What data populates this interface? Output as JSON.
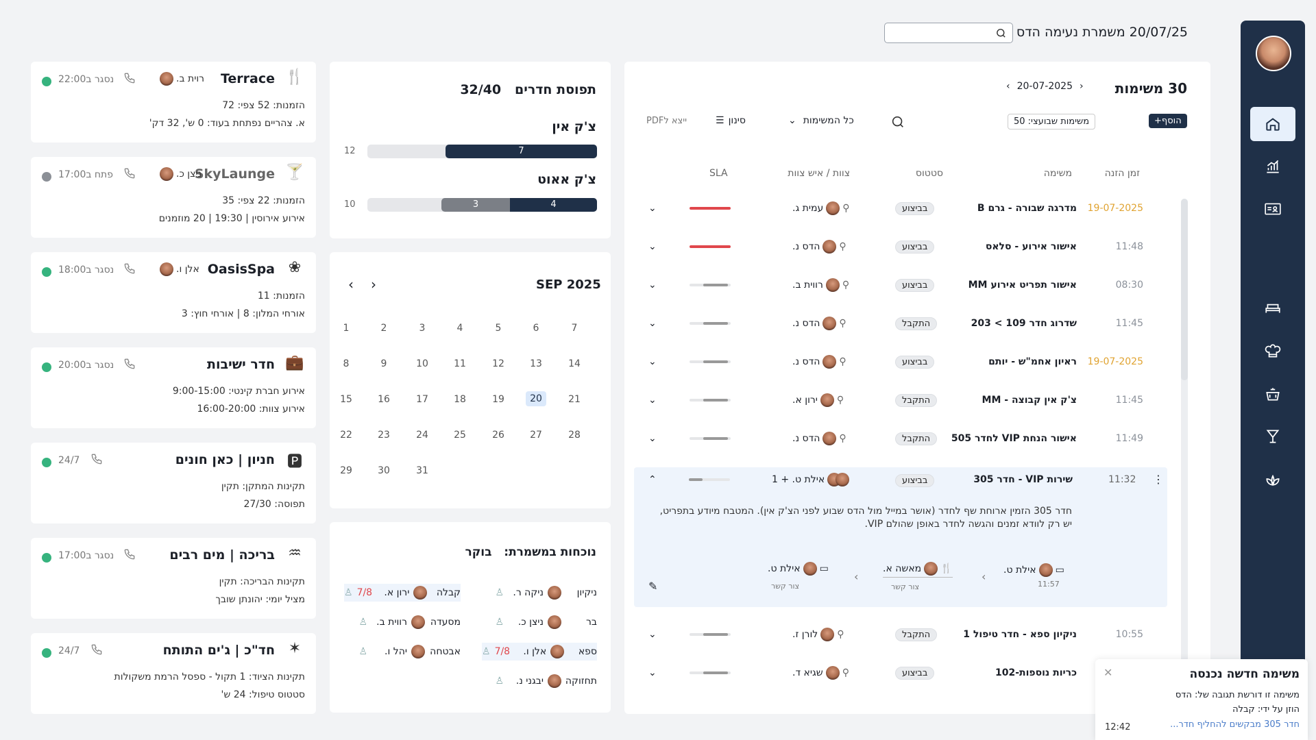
{
  "header": {
    "title": "20/07/25 משמרת נעימה הדס",
    "search_placeholder": ""
  },
  "sidebar": {
    "items": [
      "home-icon",
      "analytics-icon",
      "id-card-icon",
      "bed-icon",
      "chef-icon",
      "room-service-icon",
      "cocktail-icon",
      "spa-icon"
    ]
  },
  "tasks": {
    "title": "30 משימות",
    "date": "20-07-2025",
    "add_label": "+הוסף",
    "weekly_label": "משימות שבועצי: 50",
    "filter_all": "כל המשימות",
    "filter_label": "סינון",
    "export_label": "ייצא לPDF",
    "columns": {
      "time": "זמן הזנה",
      "task": "משימה",
      "status": "סטטוס",
      "team": "צוות / איש צוות",
      "sla": "SLA"
    },
    "rows": [
      {
        "time": "19-07-2025",
        "task": "מדרגה שבורה - גרם B",
        "status": "בביצוע",
        "person": "עמית ג.",
        "sla": "red",
        "icon": "wrench-icon"
      },
      {
        "time": "11:48",
        "task": "אישור אירוע - סלאס",
        "status": "בביצוע",
        "person": "הדס נ.",
        "sla": "red",
        "icon": "bell-icon"
      },
      {
        "time": "08:30",
        "task": "אישור תפריט אירוע MM",
        "status": "בביצוע",
        "person": "רווית ב.",
        "sla": "grey",
        "icon": "fork-icon"
      },
      {
        "time": "11:45",
        "task": "שדרוג חדר 109 > 203",
        "status": "התקבל",
        "person": "הדס נ.",
        "sla": "grey",
        "icon": "bell-icon"
      },
      {
        "time": "19-07-2025",
        "task": "ראיון אחמ\"ש - יותם",
        "status": "בביצוע",
        "person": "הדס נ.",
        "sla": "grey",
        "icon": "bell-icon"
      },
      {
        "time": "11:45",
        "task": "צ'ק אין קבוצה - MM",
        "status": "התקבל",
        "person": "ירון א.",
        "sla": "grey",
        "icon": "laptop-icon"
      },
      {
        "time": "11:49",
        "task": "אישור הנחת VIP לחדר 505",
        "status": "התקבל",
        "person": "הדס נ.",
        "sla": "grey",
        "icon": "bell-icon"
      }
    ],
    "expanded": {
      "time": "11:32",
      "task": "שירות VIP - חדר 305",
      "status": "בביצוע",
      "person": "אילת ט. + 1",
      "desc1": "חדר 305 הזמין ארוחת שף לחדר (אושר במייל מול הדס שבוע לפני הצ'ק אין). המטבח מיודע בתפריט,",
      "desc2": "יש רק לוודא זמנים והגשה לחדר באופן שהולם VIP.",
      "flow": [
        {
          "name": "אילת ט.",
          "sub": "11:57"
        },
        {
          "name": "מאשה א.",
          "sub": "צור קשר"
        },
        {
          "name": "אילת ט.",
          "sub": "צור קשר"
        }
      ]
    },
    "rows2": [
      {
        "time": "10:55",
        "task": "ניקיון ספא - חדר טיפול 1",
        "status": "התקבל",
        "person": "לורן ז."
      },
      {
        "time": "",
        "task": "כריות נוספות-102",
        "status": "בביצוע",
        "person": "שגיא ד."
      }
    ]
  },
  "occupancy": {
    "title": "תפוסת חדרים",
    "value": "32/40",
    "checkin_label": "צ'ק אין",
    "checkin_total": "12",
    "checkin_done": "7",
    "checkout_label": "צ'ק אאוט",
    "checkout_total": "10",
    "checkout_a": "4",
    "checkout_b": "3"
  },
  "calendar": {
    "month": "SEP 2025",
    "weeks": [
      [
        "7",
        "6",
        "5",
        "4",
        "3",
        "2",
        "1"
      ],
      [
        "14",
        "13",
        "12",
        "11",
        "10",
        "9",
        "8"
      ],
      [
        "21",
        "20",
        "19",
        "18",
        "17",
        "16",
        "15"
      ],
      [
        "28",
        "27",
        "26",
        "25",
        "24",
        "23",
        "22"
      ],
      [
        "",
        "",
        "",
        "",
        "31",
        "30",
        "29"
      ]
    ],
    "selected": "20"
  },
  "attendance": {
    "title": "נוכחות במשמרת:",
    "shift": "בוקר",
    "right": [
      {
        "dept": "ניקיון",
        "name": "ניקה ר."
      },
      {
        "dept": "בר",
        "name": "ניצן כ."
      },
      {
        "dept": "ספא",
        "name": "אלן ו.",
        "count": "7/8"
      },
      {
        "dept": "תחזוקה",
        "name": "יבגני נ."
      }
    ],
    "left": [
      {
        "dept": "קבלה",
        "name": "ירון א.",
        "count": "7/8"
      },
      {
        "dept": "מסעדה",
        "name": "רווית ב."
      },
      {
        "dept": "אבטחה",
        "name": "יהל ו."
      }
    ]
  },
  "cards": [
    {
      "title": "Terrace",
      "status": "נסגר ב22:00",
      "person": "רוית ב.",
      "l1": "הזמנות: 52   צפי: 72",
      "l2": "א. צהריים נפתחת בעוד: 0 ש', 32 דק'",
      "dot": "#36b37e",
      "icon": "restaurant-icon"
    },
    {
      "title": "SkyLaunge",
      "status": "פתח ב17:00",
      "person": "ניצן כ.",
      "l1": "הזמנות: 22   צפי: 35",
      "l2": "אירוע אירוסין | 19:30 | 20 מוזמנים",
      "dot": "#8b8f96",
      "icon": "cocktail-icon",
      "muted": true
    },
    {
      "title": "OasisSpa",
      "status": "נסגר ב18:00",
      "person": "אלן ו.",
      "l1": "הזמנות: 11",
      "l2": "אורחי המלון: 8 | אורחי חוץ: 3",
      "dot": "#36b37e",
      "icon": "spa-icon"
    },
    {
      "title": "חדר ישיבות",
      "status": "נסגר ב20:00",
      "person": "",
      "l1": "אירוע חברת קינטי: 9:00-15:00",
      "l2": "אירוע צוות: 16:00-20:00",
      "dot": "#36b37e",
      "icon": "briefcase-icon"
    },
    {
      "title": "חניון | כאן חונים",
      "status": "24/7",
      "person": "",
      "l1": "תקינות המתקן: תקין",
      "l2": "תפוסה: 27/30",
      "dot": "#36b37e",
      "icon": "parking-icon"
    },
    {
      "title": "בריכה | מים רבים",
      "status": "נסגר ב17:00",
      "person": "",
      "l1": "תקינות הבריכה: תקין",
      "l2": "מציל יומי: יהונתן שובך",
      "dot": "#36b37e",
      "icon": "pool-icon"
    },
    {
      "title": "חד\"כ | ג'ים התותח",
      "status": "24/7",
      "person": "",
      "l1": "תקינות הציוד: 1 תקול - ספסל הרמת משקולות",
      "l2": "סטטוס טיפול: 24 ש'",
      "dot": "#36b37e",
      "icon": "dumbbell-icon"
    }
  ],
  "toast": {
    "title": "משימה חדשה נכנסה",
    "line1": "משימה זו דורשת תגובה של: הדס",
    "line2": "הוזן על ידי: קבלה",
    "link": "חדר 305 מבקשים להחליף חדר...",
    "time": "12:42"
  }
}
